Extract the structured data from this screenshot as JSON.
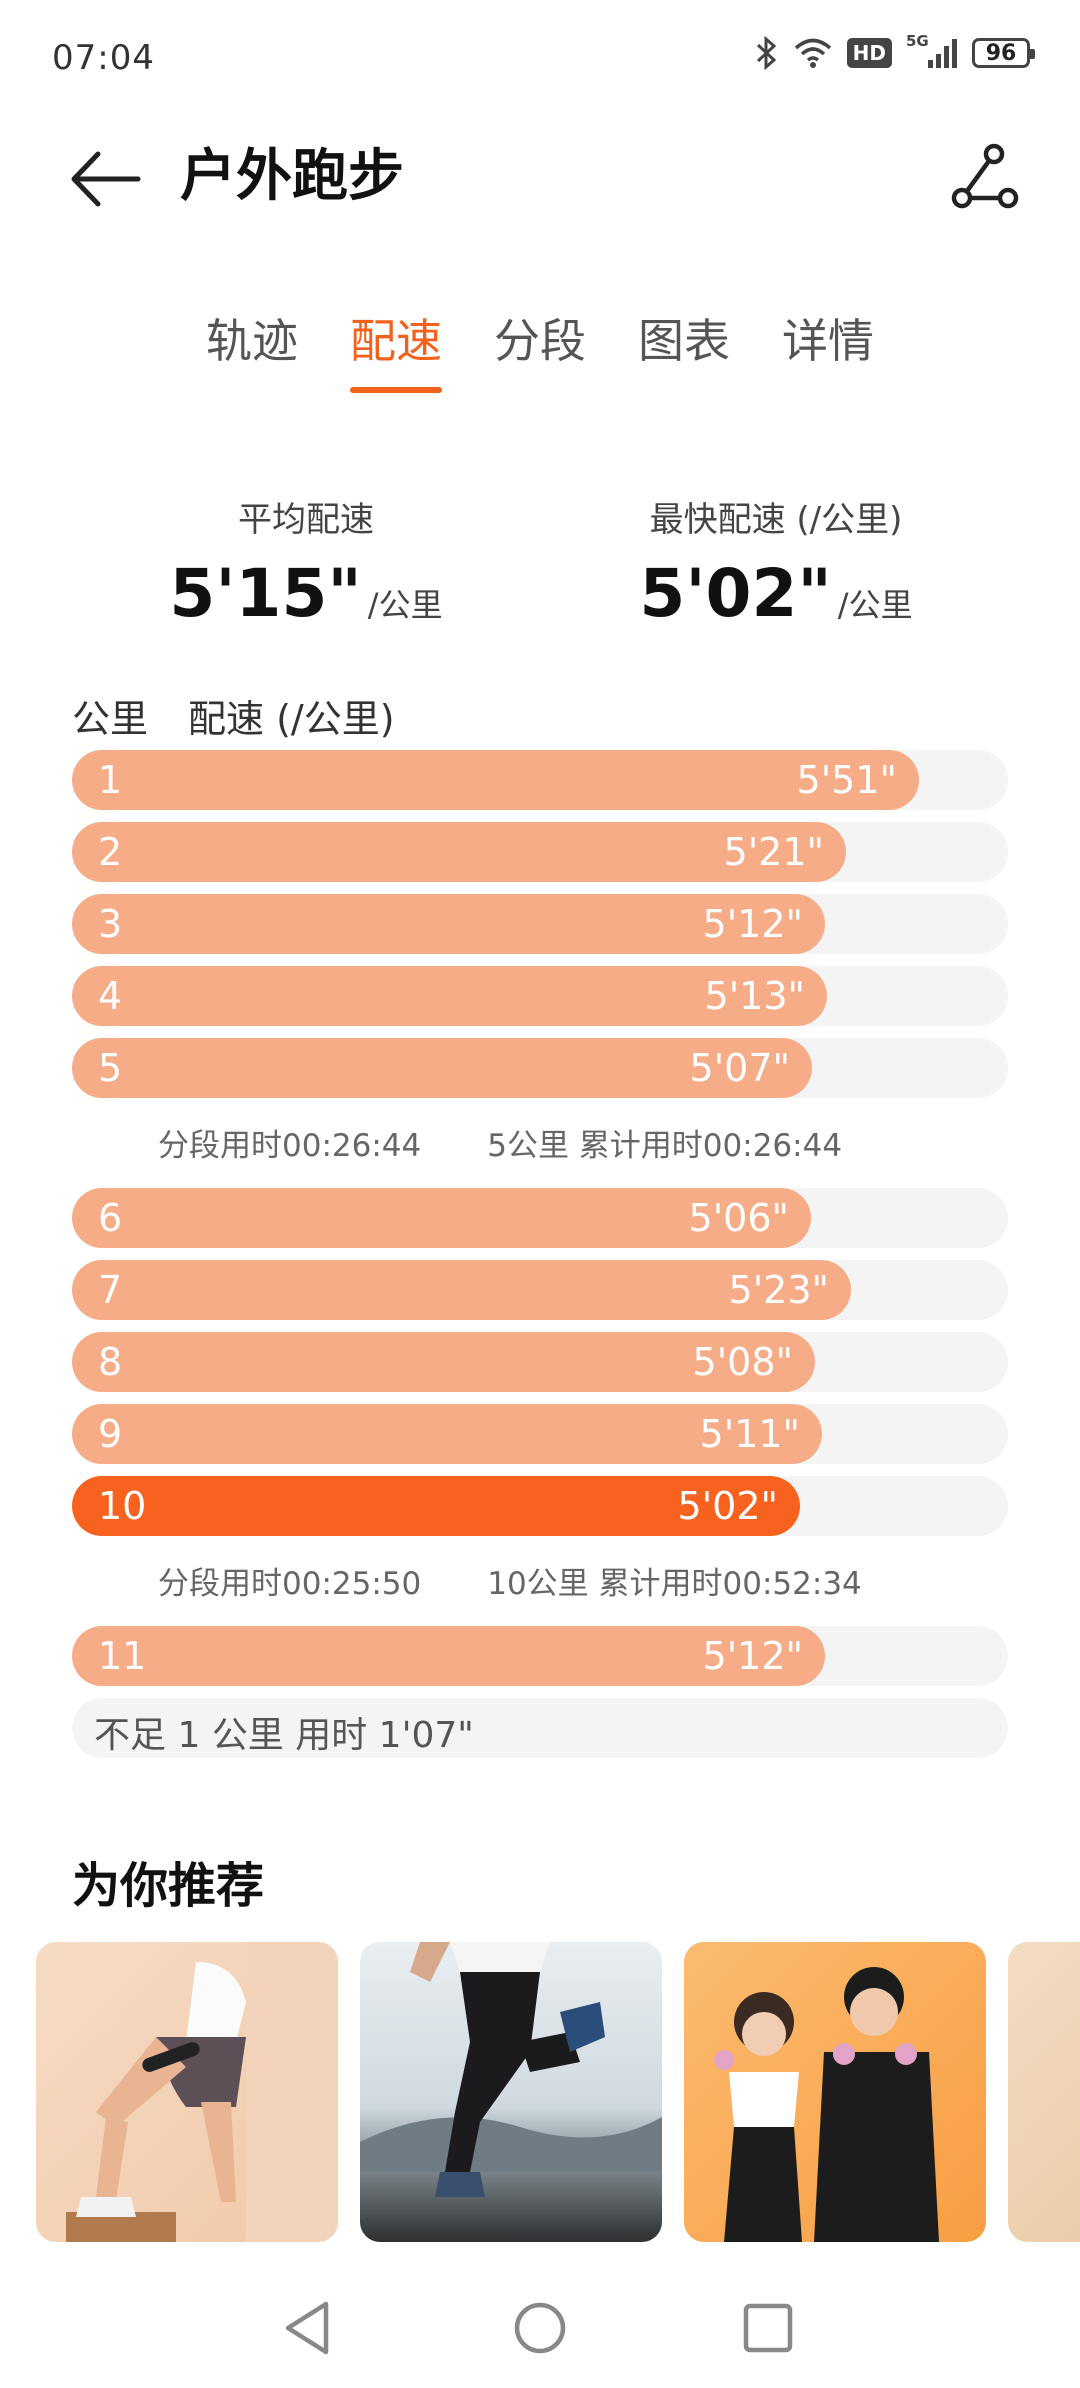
{
  "status": {
    "time": "07:04",
    "hd": "HD",
    "network": "5G",
    "battery": "96"
  },
  "header": {
    "title": "户外跑步"
  },
  "tabs": [
    "轨迹",
    "配速",
    "分段",
    "图表",
    "详情"
  ],
  "summary": {
    "avg_label": "平均配速",
    "avg_value": "5'15\"",
    "avg_unit": "/公里",
    "fast_label": "最快配速 (/公里)",
    "fast_value": "5'02\"",
    "fast_unit": "/公里"
  },
  "pace": {
    "col_km": "公里",
    "col_pace": "配速 (/公里)",
    "rows": [
      {
        "km": "1",
        "pace": "5'51\"",
        "fill": 0.905
      },
      {
        "km": "2",
        "pace": "5'21\"",
        "fill": 0.827
      },
      {
        "km": "3",
        "pace": "5'12\"",
        "fill": 0.804
      },
      {
        "km": "4",
        "pace": "5'13\"",
        "fill": 0.807
      },
      {
        "km": "5",
        "pace": "5'07\"",
        "fill": 0.791
      },
      {
        "km": "6",
        "pace": "5'06\"",
        "fill": 0.789
      },
      {
        "km": "7",
        "pace": "5'23\"",
        "fill": 0.832
      },
      {
        "km": "8",
        "pace": "5'08\"",
        "fill": 0.794
      },
      {
        "km": "9",
        "pace": "5'11\"",
        "fill": 0.801
      },
      {
        "km": "10",
        "pace": "5'02\"",
        "fill": 0.778,
        "fastest": true
      },
      {
        "km": "11",
        "pace": "5'12\"",
        "fill": 0.804
      }
    ],
    "splits": [
      {
        "segment": "分段用时00:26:44",
        "total": "5公里 累计用时00:26:44"
      },
      {
        "segment": "分段用时00:25:50",
        "total": "10公里 累计用时00:52:34"
      }
    ],
    "remainder": "不足 1 公里 用时 1'07\""
  },
  "recommend": {
    "title": "为你推荐"
  },
  "colors": {
    "accent": "#F2621C",
    "bar": "#F7AC88",
    "bar_fastest": "#F8621F",
    "track": "#f4f4f4"
  }
}
